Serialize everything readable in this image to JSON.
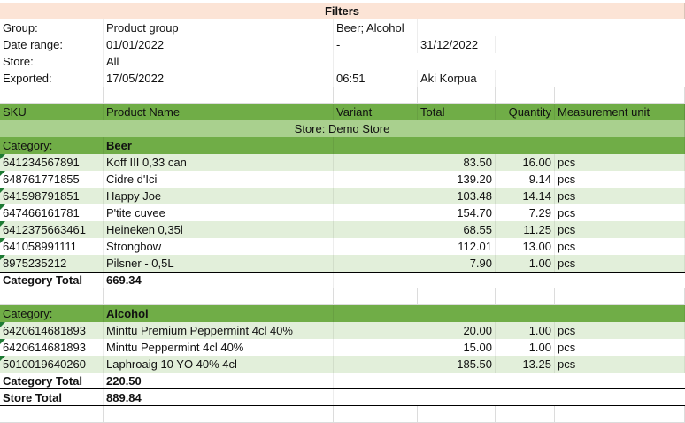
{
  "title": "Filters",
  "filters": [
    {
      "label": "Group:",
      "value": "Product group",
      "detail": "Beer; Alcohol"
    },
    {
      "label": "Date range:",
      "value": "01/01/2022",
      "detail": "-",
      "end": "31/12/2022"
    },
    {
      "label": "Store:",
      "value": "All"
    },
    {
      "label": "Exported:",
      "value": "17/05/2022",
      "detail": "06:51",
      "end": "Aki Korpua"
    }
  ],
  "columns": [
    "SKU",
    "Product Name",
    "Variant",
    "Total",
    "Quantity",
    "Measurement unit"
  ],
  "store": "Store: Demo Store",
  "categories": [
    {
      "label": "Category:",
      "name": "Beer",
      "items": [
        {
          "sku": "641234567891",
          "name": "Koff III 0,33 can",
          "total": "83.50",
          "quantity": "16.00",
          "unit": "pcs"
        },
        {
          "sku": "648761771855",
          "name": "Cidre d'Ici",
          "total": "139.20",
          "quantity": "9.14",
          "unit": "pcs"
        },
        {
          "sku": "641598791851",
          "name": "Happy Joe",
          "total": "103.48",
          "quantity": "14.14",
          "unit": "pcs"
        },
        {
          "sku": "647466161781",
          "name": "P'tite cuvee",
          "total": "154.70",
          "quantity": "7.29",
          "unit": "pcs"
        },
        {
          "sku": "6412375663461",
          "name": "Heineken 0,35l",
          "total": "68.55",
          "quantity": "11.25",
          "unit": "pcs"
        },
        {
          "sku": "641058991111",
          "name": "Strongbow",
          "total": "112.01",
          "quantity": "13.00",
          "unit": "pcs"
        },
        {
          "sku": "8975235212",
          "name": "Pilsner - 0,5L",
          "total": "7.90",
          "quantity": "1.00",
          "unit": "pcs"
        }
      ],
      "total_label": "Category Total",
      "total": "669.34"
    },
    {
      "label": "Category:",
      "name": "Alcohol",
      "items": [
        {
          "sku": "6420614681893",
          "name": "Minttu Premium Peppermint 4cl 40%",
          "total": "20.00",
          "quantity": "1.00",
          "unit": "pcs"
        },
        {
          "sku": "6420614681893",
          "name": "Minttu Peppermint 4cl 40%",
          "total": "15.00",
          "quantity": "1.00",
          "unit": "pcs"
        },
        {
          "sku": "5010019640260",
          "name": "Laphroaig 10 YO 40% 4cl",
          "total": "185.50",
          "quantity": "13.25",
          "unit": "pcs"
        }
      ],
      "total_label": "Category Total",
      "total": "220.50"
    }
  ],
  "store_total": {
    "label": "Store Total",
    "value": "889.84"
  }
}
